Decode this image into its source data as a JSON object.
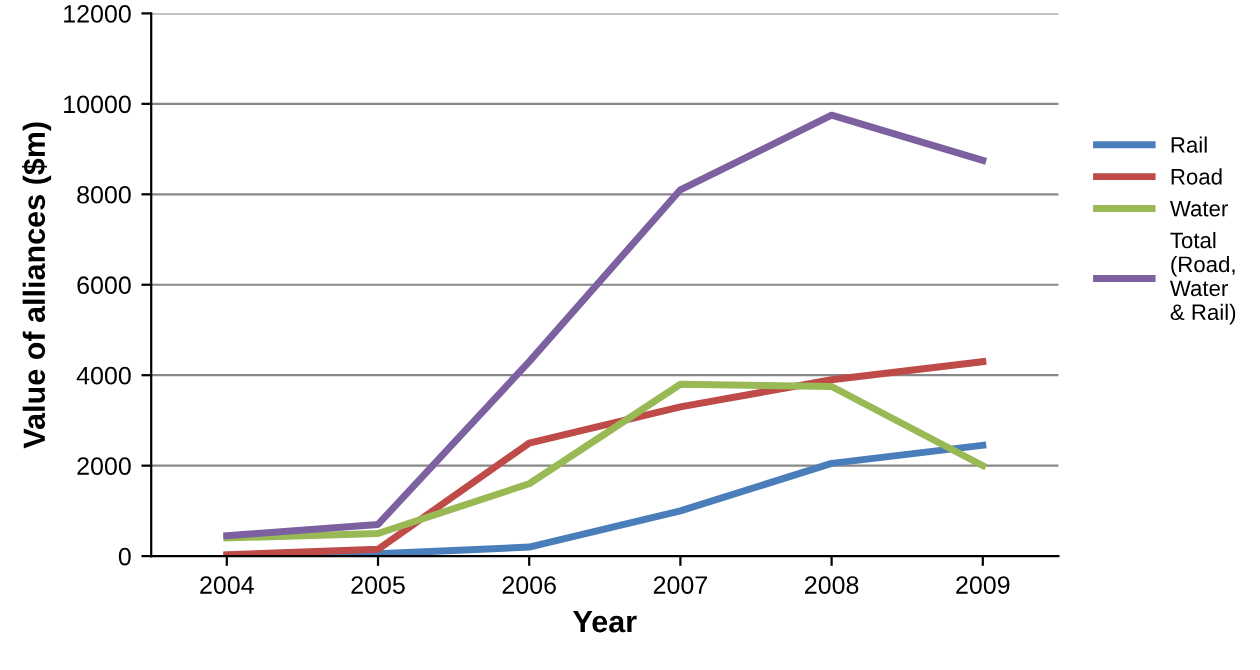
{
  "chart_data": {
    "type": "line",
    "xlabel": "Year",
    "ylabel": "Value of alliances ($m)",
    "categories": [
      "2004",
      "2005",
      "2006",
      "2007",
      "2008",
      "2009"
    ],
    "series": [
      {
        "name": "Rail",
        "color": "#4a7ebb",
        "values": [
          0,
          50,
          200,
          1000,
          2050,
          2450
        ]
      },
      {
        "name": "Road",
        "color": "#be4b48",
        "values": [
          30,
          150,
          2500,
          3300,
          3900,
          4300
        ]
      },
      {
        "name": "Water",
        "color": "#98b954",
        "values": [
          400,
          500,
          1600,
          3800,
          3750,
          2000
        ]
      },
      {
        "name": "Total\n(Road,\nWater\n& Rail)",
        "color": "#7d60a0",
        "values": [
          450,
          700,
          4300,
          8100,
          9750,
          8750
        ]
      }
    ],
    "ylim": [
      0,
      12000
    ],
    "yticks": [
      0,
      2000,
      4000,
      6000,
      8000,
      10000,
      12000
    ],
    "grid": "y",
    "legend": "right",
    "marker": "none",
    "line_style": "solid"
  }
}
